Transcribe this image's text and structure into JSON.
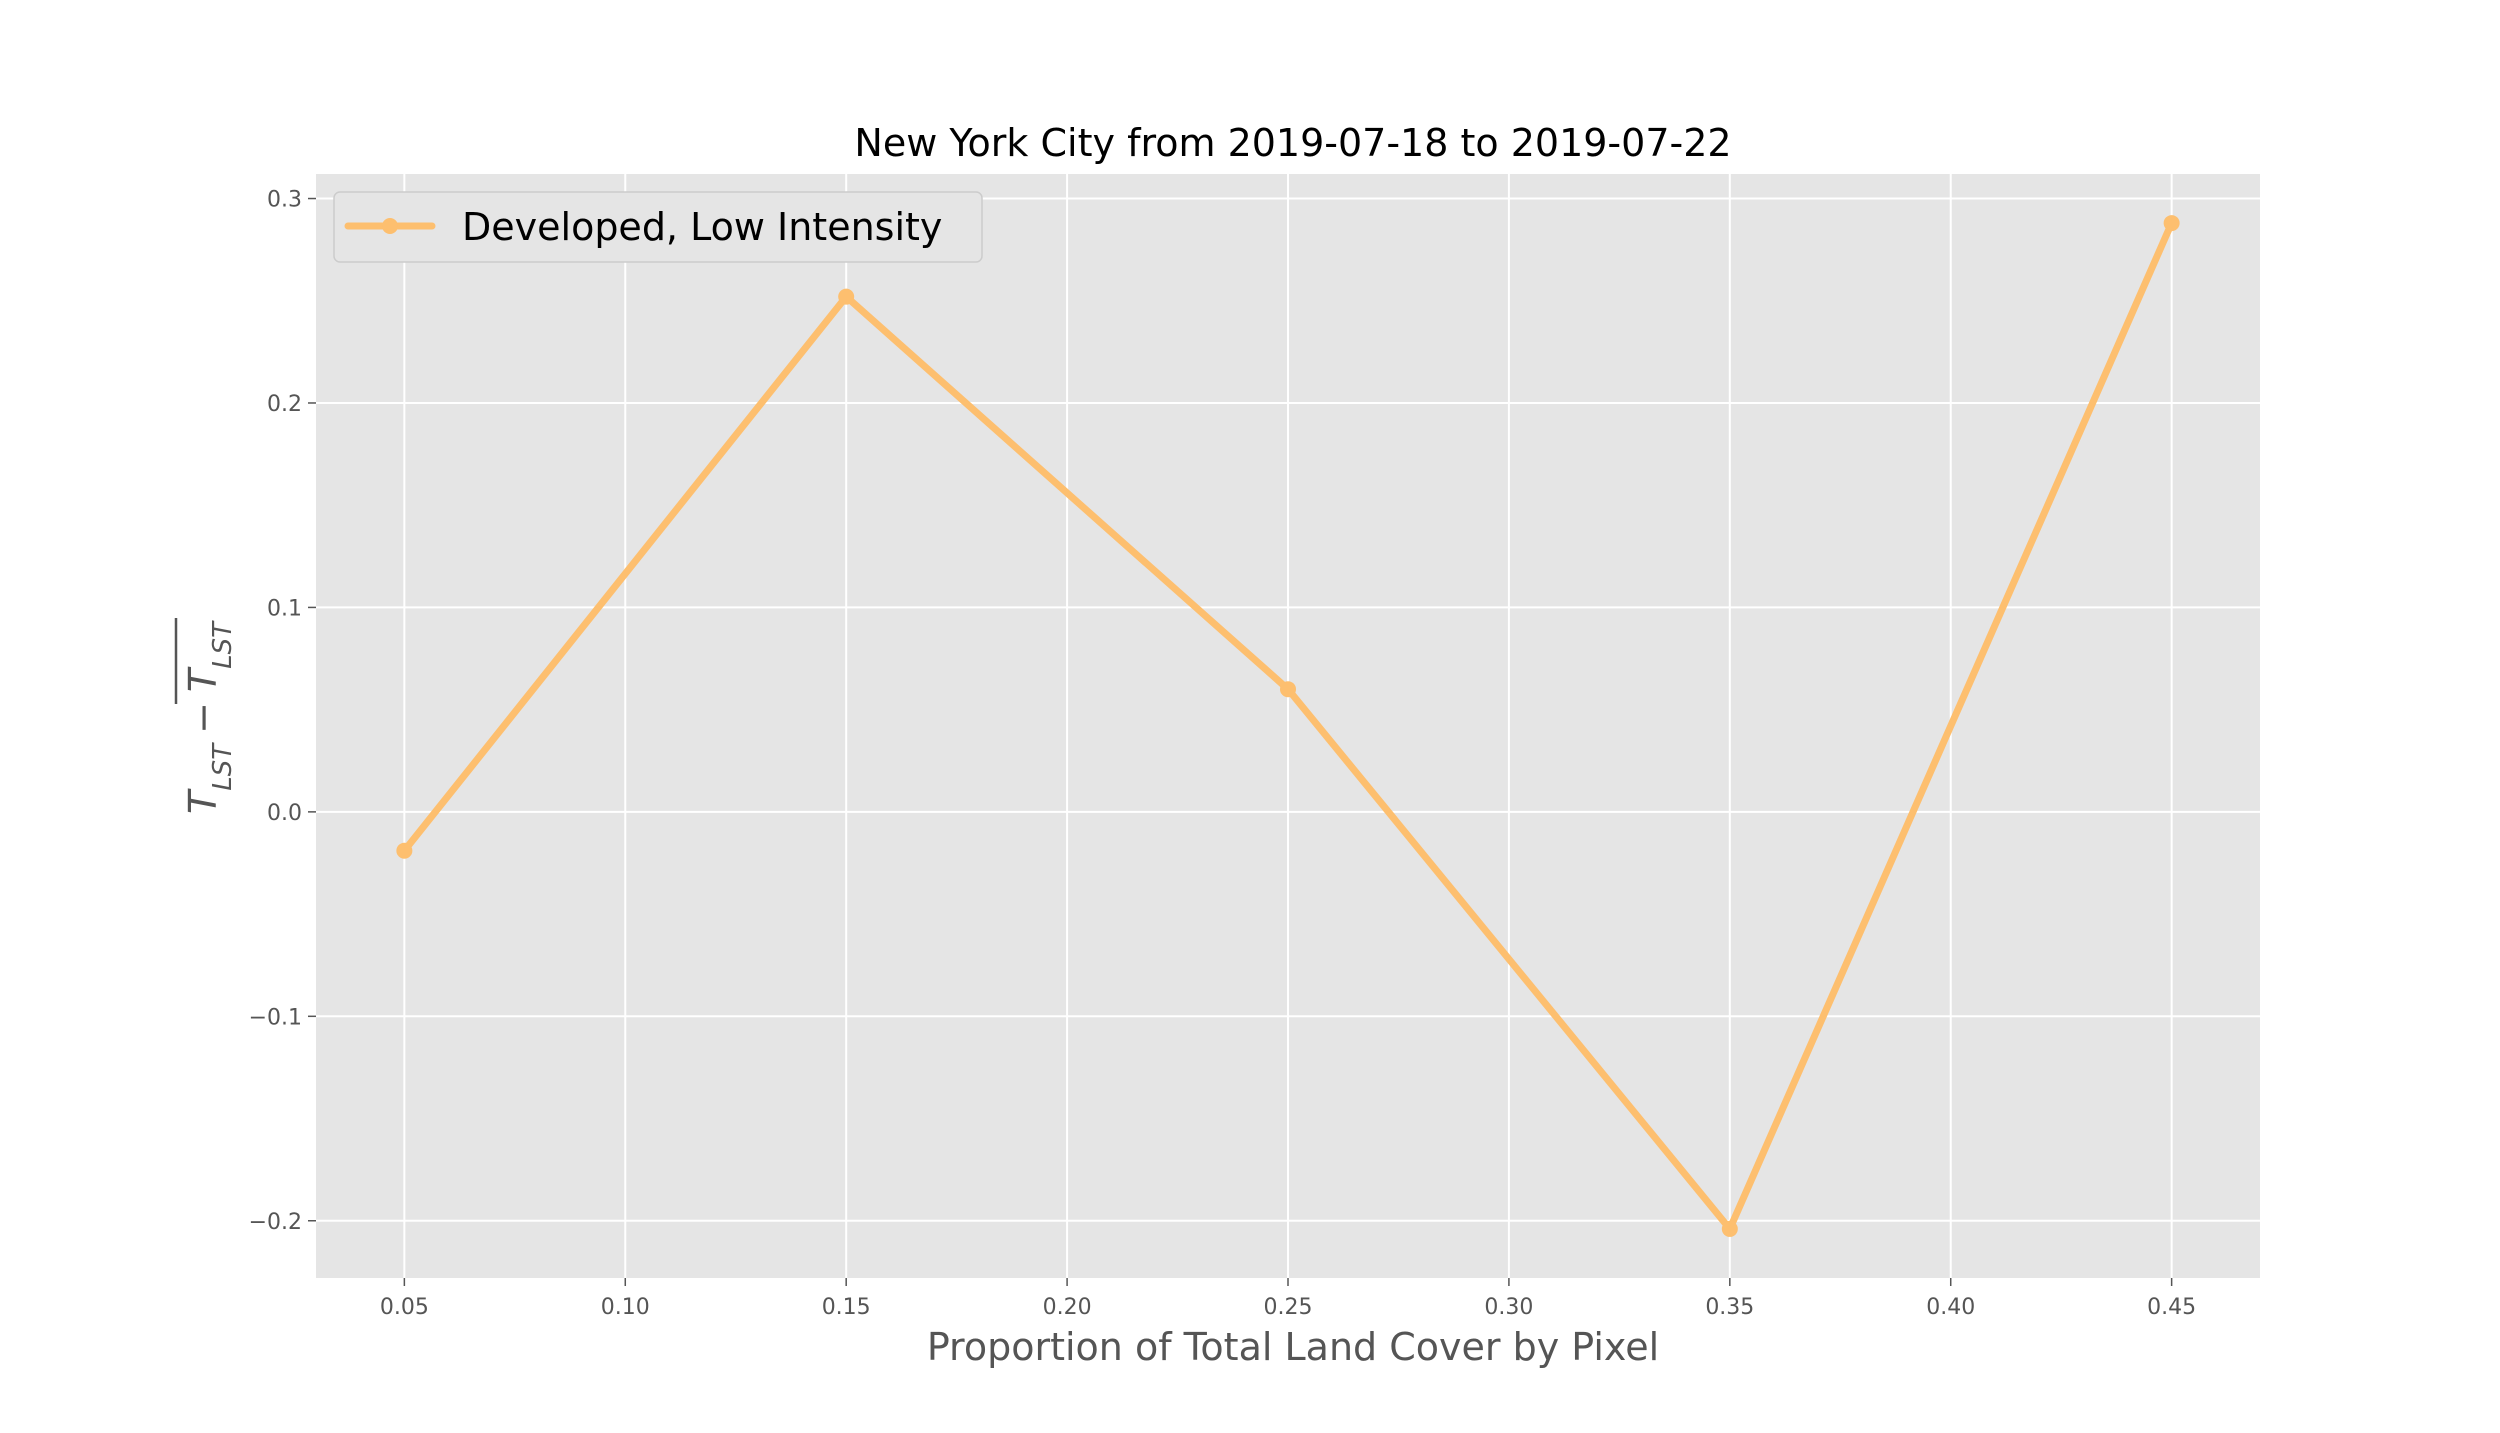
{
  "chart_data": {
    "type": "line",
    "title": "New York City from 2019-07-18 to 2019-07-22",
    "xlabel": "Proportion of Total Land Cover by Pixel",
    "ylabel": "T_LST − T̄_LST",
    "xlim": [
      0.03,
      0.47
    ],
    "ylim": [
      -0.228,
      0.312
    ],
    "xticks": [
      0.05,
      0.1,
      0.15,
      0.2,
      0.25,
      0.3,
      0.35,
      0.4,
      0.45
    ],
    "xtick_labels": [
      "0.05",
      "0.10",
      "0.15",
      "0.20",
      "0.25",
      "0.30",
      "0.35",
      "0.40",
      "0.45"
    ],
    "yticks": [
      -0.2,
      -0.1,
      0.0,
      0.1,
      0.2,
      0.3
    ],
    "ytick_labels": [
      "−0.2",
      "−0.1",
      "0.0",
      "0.1",
      "0.2",
      "0.3"
    ],
    "grid": true,
    "legend_position": "top-left",
    "background_color": "#e5e5e5",
    "grid_color": "#ffffff",
    "series": [
      {
        "name": "Developed, Low Intensity",
        "color": "#fdbf6f",
        "x": [
          0.05,
          0.15,
          0.25,
          0.35,
          0.45
        ],
        "y": [
          -0.019,
          0.252,
          0.06,
          -0.204,
          0.288
        ]
      }
    ]
  }
}
